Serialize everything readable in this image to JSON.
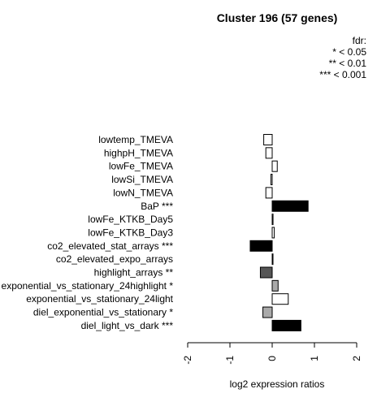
{
  "chart_data": {
    "type": "bar",
    "orientation": "horizontal",
    "title": "Cluster 196 (57 genes)",
    "xlabel": "log2 expression ratios",
    "ylabel": "",
    "xlim": [
      -2,
      2
    ],
    "x_ticks": [
      "-2",
      "-1",
      "0",
      "1",
      "2"
    ],
    "legend": {
      "title": "fdr:",
      "entries": [
        "* < 0.05",
        "** < 0.01",
        "*** < 0.001"
      ],
      "position": "top-right"
    },
    "categories": [
      "lowtemp_TMEVA",
      "highpH_TMEVA",
      "lowFe_TMEVA",
      "lowSi_TMEVA",
      "lowN_TMEVA",
      "BaP ***",
      "lowFe_KTKB_Day5",
      "lowFe_KTKB_Day3",
      "co2_elevated_stat_arrays ***",
      "co2_elevated_expo_arrays",
      "highlight_arrays **",
      "exponential_vs_stationary_24highlight *",
      "exponential_vs_stationary_24light",
      "diel_exponential_vs_stationary *",
      "diel_light_vs_dark ***"
    ],
    "values": [
      -0.2,
      -0.15,
      0.12,
      -0.03,
      -0.15,
      0.85,
      0.02,
      0.05,
      -0.52,
      0.01,
      -0.28,
      0.14,
      0.38,
      -0.22,
      0.68
    ],
    "colors": [
      "#ffffff",
      "#ffffff",
      "#ffffff",
      "#ffffff",
      "#ffffff",
      "#000000",
      "#ffffff",
      "#ffffff",
      "#000000",
      "#ffffff",
      "#555555",
      "#aaaaaa",
      "#ffffff",
      "#aaaaaa",
      "#000000"
    ]
  }
}
